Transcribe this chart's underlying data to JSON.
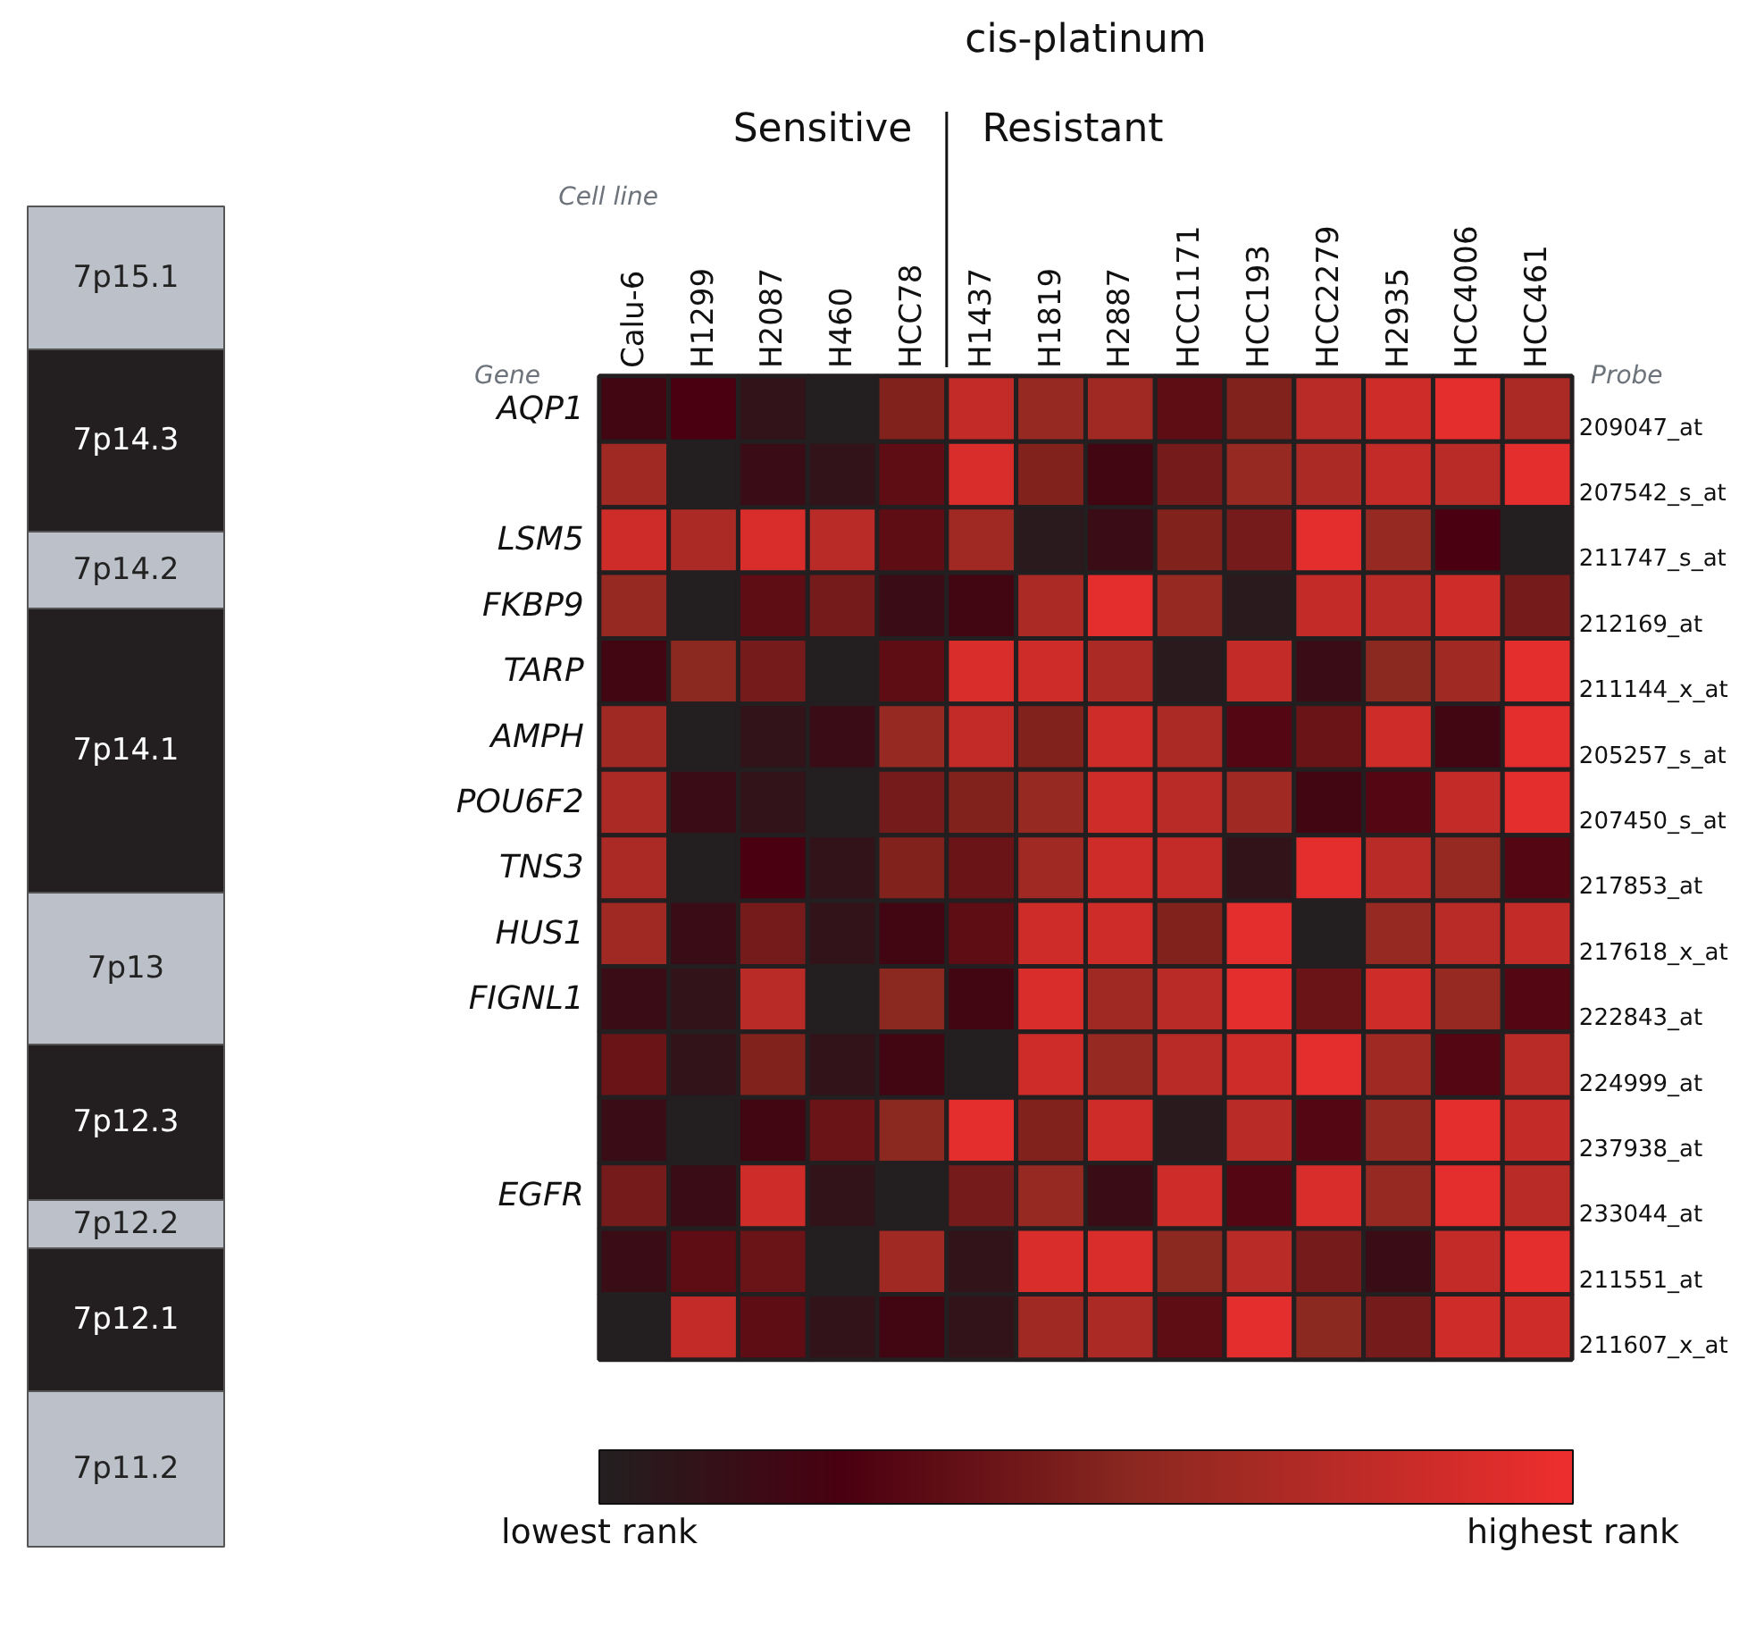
{
  "chart_data": {
    "type": "heatmap",
    "title": "cis-platinum",
    "categories": [
      "Calu-6",
      "H1299",
      "H2087",
      "H460",
      "HCC78",
      "H1437",
      "H1819",
      "H2887",
      "HCC1171",
      "HCC193",
      "HCC2279",
      "H2935",
      "HCC4006",
      "HCC461"
    ],
    "y_categories": [
      "AQP1",
      null,
      "LSM5",
      "FKBP9",
      "TARP",
      "AMPH",
      "POU6F2",
      "TNS3",
      "HUS1",
      "FIGNL1",
      null,
      null,
      "EGFR",
      null,
      null
    ],
    "y2_categories": [
      "209047_at",
      "207542_s_at",
      "211747_s_at",
      "212169_at",
      "211144_x_at",
      "205257_s_at",
      "207450_s_at",
      "217853_at",
      "217618_x_at",
      "222843_at",
      "224999_at",
      "237938_at",
      "233044_at",
      "211551_at",
      "211607_x_at"
    ],
    "cells": [
      [
        0.2,
        0.25,
        0.1,
        0.0,
        0.5,
        0.8,
        0.6,
        0.65,
        0.35,
        0.5,
        0.75,
        0.85,
        0.95,
        0.7
      ],
      [
        0.65,
        0.0,
        0.15,
        0.1,
        0.35,
        0.9,
        0.5,
        0.2,
        0.45,
        0.6,
        0.7,
        0.8,
        0.75,
        0.95
      ],
      [
        0.85,
        0.7,
        0.9,
        0.75,
        0.35,
        0.65,
        0.05,
        0.15,
        0.5,
        0.45,
        0.95,
        0.6,
        0.25,
        0.0
      ],
      [
        0.6,
        0.0,
        0.35,
        0.45,
        0.15,
        0.2,
        0.7,
        0.95,
        0.6,
        0.05,
        0.8,
        0.75,
        0.85,
        0.45
      ],
      [
        0.2,
        0.55,
        0.45,
        0.0,
        0.35,
        0.9,
        0.85,
        0.7,
        0.05,
        0.8,
        0.15,
        0.55,
        0.65,
        0.95
      ],
      [
        0.65,
        0.0,
        0.1,
        0.15,
        0.6,
        0.8,
        0.5,
        0.85,
        0.7,
        0.3,
        0.4,
        0.85,
        0.2,
        0.95
      ],
      [
        0.7,
        0.15,
        0.1,
        0.0,
        0.45,
        0.5,
        0.6,
        0.85,
        0.75,
        0.65,
        0.2,
        0.3,
        0.8,
        0.95
      ],
      [
        0.7,
        0.0,
        0.25,
        0.1,
        0.5,
        0.4,
        0.65,
        0.85,
        0.8,
        0.1,
        0.95,
        0.75,
        0.6,
        0.3
      ],
      [
        0.65,
        0.15,
        0.45,
        0.1,
        0.2,
        0.35,
        0.85,
        0.85,
        0.5,
        0.95,
        0.0,
        0.6,
        0.75,
        0.8
      ],
      [
        0.15,
        0.1,
        0.75,
        0.0,
        0.55,
        0.2,
        0.9,
        0.65,
        0.75,
        0.95,
        0.4,
        0.85,
        0.6,
        0.3
      ],
      [
        0.4,
        0.1,
        0.5,
        0.1,
        0.2,
        0.0,
        0.85,
        0.6,
        0.75,
        0.85,
        0.95,
        0.65,
        0.3,
        0.75
      ],
      [
        0.15,
        0.0,
        0.2,
        0.4,
        0.55,
        0.95,
        0.5,
        0.85,
        0.05,
        0.75,
        0.3,
        0.6,
        0.95,
        0.8
      ],
      [
        0.45,
        0.15,
        0.85,
        0.1,
        0.0,
        0.45,
        0.6,
        0.15,
        0.85,
        0.3,
        0.9,
        0.6,
        0.95,
        0.75
      ],
      [
        0.15,
        0.35,
        0.4,
        0.0,
        0.65,
        0.1,
        0.9,
        0.9,
        0.55,
        0.75,
        0.45,
        0.15,
        0.8,
        0.95
      ],
      [
        0.0,
        0.8,
        0.35,
        0.1,
        0.2,
        0.1,
        0.65,
        0.7,
        0.35,
        0.95,
        0.55,
        0.45,
        0.85,
        0.85
      ]
    ],
    "clim": [
      0,
      1
    ],
    "cticks": [
      {
        "value": 0,
        "label": "lowest rank"
      },
      {
        "value": 1,
        "label": "highest rank"
      }
    ],
    "annotations": [
      "Sensitive",
      "Resistant",
      "Cell line",
      "Gene",
      "Probe",
      "7p15.1",
      "7p14.3",
      "7p14.2",
      "7p14.1",
      "7p13",
      "7p12.3",
      "7p12.2",
      "7p12.1",
      "7p11.2"
    ]
  }
}
